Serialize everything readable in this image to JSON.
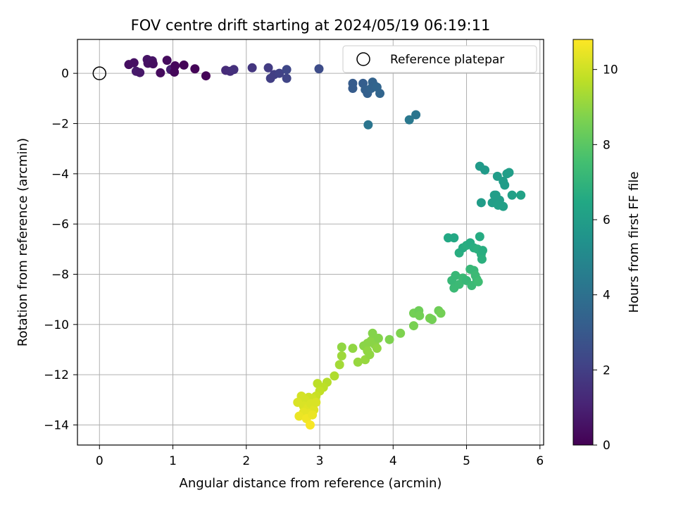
{
  "chart_data": {
    "type": "scatter",
    "title": "FOV centre drift starting at 2024/05/19 06:19:11",
    "xlabel": "Angular distance from reference (arcmin)",
    "ylabel": "Rotation from reference (arcmin)",
    "xlim": [
      -0.3,
      6.05
    ],
    "ylim": [
      -14.8,
      1.35
    ],
    "xticks": [
      0,
      1,
      2,
      3,
      4,
      5,
      6
    ],
    "yticks": [
      0,
      -2,
      -4,
      -6,
      -8,
      -10,
      -12,
      -14
    ],
    "grid": true,
    "legend": {
      "position": "top-right",
      "entries": [
        "Reference platepar"
      ]
    },
    "reference_point": {
      "x": 0,
      "y": 0
    },
    "colorbar": {
      "label": "Hours from first FF file",
      "colormap": "viridis",
      "range": [
        0,
        10.8
      ],
      "ticks": [
        0,
        2,
        4,
        6,
        8,
        10
      ]
    },
    "points": [
      {
        "x": 0.4,
        "y": 0.35,
        "c": 0.4
      },
      {
        "x": 0.47,
        "y": 0.42,
        "c": 0.5
      },
      {
        "x": 0.5,
        "y": 0.08,
        "c": 0.8
      },
      {
        "x": 0.55,
        "y": 0.03,
        "c": 0.7
      },
      {
        "x": 0.65,
        "y": 0.55,
        "c": 0.6
      },
      {
        "x": 0.66,
        "y": 0.4,
        "c": 0.5
      },
      {
        "x": 0.72,
        "y": 0.5,
        "c": 0.6
      },
      {
        "x": 0.73,
        "y": 0.38,
        "c": 0.4
      },
      {
        "x": 0.83,
        "y": 0.02,
        "c": 0.3
      },
      {
        "x": 0.92,
        "y": 0.52,
        "c": 0.3
      },
      {
        "x": 0.97,
        "y": 0.15,
        "c": 0.9
      },
      {
        "x": 1.02,
        "y": 0.05,
        "c": 0.2
      },
      {
        "x": 1.03,
        "y": 0.3,
        "c": 0.2
      },
      {
        "x": 1.15,
        "y": 0.33,
        "c": 0.1
      },
      {
        "x": 1.3,
        "y": 0.18,
        "c": 0.1
      },
      {
        "x": 1.45,
        "y": -0.1,
        "c": 0.1
      },
      {
        "x": 1.72,
        "y": 0.12,
        "c": 1.3
      },
      {
        "x": 1.78,
        "y": 0.08,
        "c": 1.4
      },
      {
        "x": 1.83,
        "y": 0.15,
        "c": 1.5
      },
      {
        "x": 2.08,
        "y": 0.22,
        "c": 1.7
      },
      {
        "x": 2.3,
        "y": 0.22,
        "c": 1.9
      },
      {
        "x": 2.33,
        "y": -0.2,
        "c": 2.0
      },
      {
        "x": 2.38,
        "y": -0.05,
        "c": 2.0
      },
      {
        "x": 2.45,
        "y": 0.0,
        "c": 2.1
      },
      {
        "x": 2.55,
        "y": -0.2,
        "c": 2.2
      },
      {
        "x": 2.55,
        "y": 0.15,
        "c": 2.3
      },
      {
        "x": 2.99,
        "y": 0.18,
        "c": 2.5
      },
      {
        "x": 3.45,
        "y": -0.4,
        "c": 3.1
      },
      {
        "x": 3.45,
        "y": -0.6,
        "c": 3.1
      },
      {
        "x": 3.59,
        "y": -0.4,
        "c": 3.2
      },
      {
        "x": 3.62,
        "y": -0.65,
        "c": 3.3
      },
      {
        "x": 3.65,
        "y": -0.8,
        "c": 3.3
      },
      {
        "x": 3.7,
        "y": -0.6,
        "c": 3.4
      },
      {
        "x": 3.72,
        "y": -0.35,
        "c": 3.4
      },
      {
        "x": 3.75,
        "y": -0.5,
        "c": 3.4
      },
      {
        "x": 3.78,
        "y": -0.55,
        "c": 3.5
      },
      {
        "x": 3.82,
        "y": -0.8,
        "c": 3.5
      },
      {
        "x": 3.66,
        "y": -2.05,
        "c": 4.2
      },
      {
        "x": 4.22,
        "y": -1.85,
        "c": 4.3
      },
      {
        "x": 4.31,
        "y": -1.65,
        "c": 4.2
      },
      {
        "x": 5.18,
        "y": -3.7,
        "c": 5.8
      },
      {
        "x": 5.25,
        "y": -3.85,
        "c": 5.8
      },
      {
        "x": 5.2,
        "y": -5.15,
        "c": 5.9
      },
      {
        "x": 5.35,
        "y": -5.15,
        "c": 6.0
      },
      {
        "x": 5.4,
        "y": -4.85,
        "c": 6.0
      },
      {
        "x": 5.42,
        "y": -4.1,
        "c": 5.9
      },
      {
        "x": 5.45,
        "y": -5.05,
        "c": 6.0
      },
      {
        "x": 5.5,
        "y": -4.3,
        "c": 5.9
      },
      {
        "x": 5.5,
        "y": -5.3,
        "c": 6.1
      },
      {
        "x": 5.52,
        "y": -4.45,
        "c": 5.9
      },
      {
        "x": 5.55,
        "y": -4.0,
        "c": 6.0
      },
      {
        "x": 5.58,
        "y": -3.95,
        "c": 6.0
      },
      {
        "x": 5.43,
        "y": -5.25,
        "c": 6.1
      },
      {
        "x": 5.38,
        "y": -4.85,
        "c": 6.0
      },
      {
        "x": 5.62,
        "y": -4.85,
        "c": 6.1
      },
      {
        "x": 5.74,
        "y": -4.85,
        "c": 6.2
      },
      {
        "x": 4.75,
        "y": -6.55,
        "c": 6.5
      },
      {
        "x": 4.83,
        "y": -6.55,
        "c": 6.5
      },
      {
        "x": 4.9,
        "y": -7.15,
        "c": 6.7
      },
      {
        "x": 4.95,
        "y": -6.95,
        "c": 6.6
      },
      {
        "x": 5.0,
        "y": -6.85,
        "c": 6.7
      },
      {
        "x": 5.05,
        "y": -6.75,
        "c": 6.6
      },
      {
        "x": 5.1,
        "y": -6.95,
        "c": 6.7
      },
      {
        "x": 5.15,
        "y": -7.0,
        "c": 6.8
      },
      {
        "x": 5.18,
        "y": -6.5,
        "c": 6.6
      },
      {
        "x": 5.2,
        "y": -7.2,
        "c": 6.8
      },
      {
        "x": 5.21,
        "y": -7.4,
        "c": 6.8
      },
      {
        "x": 5.22,
        "y": -7.05,
        "c": 6.7
      },
      {
        "x": 4.8,
        "y": -8.25,
        "c": 7.2
      },
      {
        "x": 4.83,
        "y": -8.55,
        "c": 7.3
      },
      {
        "x": 4.85,
        "y": -8.05,
        "c": 7.2
      },
      {
        "x": 4.9,
        "y": -8.4,
        "c": 7.3
      },
      {
        "x": 4.95,
        "y": -8.15,
        "c": 7.3
      },
      {
        "x": 5.0,
        "y": -8.25,
        "c": 7.2
      },
      {
        "x": 5.05,
        "y": -7.8,
        "c": 7.2
      },
      {
        "x": 5.07,
        "y": -8.45,
        "c": 7.3
      },
      {
        "x": 5.1,
        "y": -7.85,
        "c": 7.2
      },
      {
        "x": 5.12,
        "y": -8.05,
        "c": 7.3
      },
      {
        "x": 5.14,
        "y": -8.2,
        "c": 7.3
      },
      {
        "x": 5.16,
        "y": -8.3,
        "c": 7.4
      },
      {
        "x": 4.28,
        "y": -9.55,
        "c": 8.5
      },
      {
        "x": 4.35,
        "y": -9.45,
        "c": 8.4
      },
      {
        "x": 4.36,
        "y": -9.65,
        "c": 8.5
      },
      {
        "x": 4.5,
        "y": -9.75,
        "c": 8.6
      },
      {
        "x": 4.53,
        "y": -9.8,
        "c": 8.5
      },
      {
        "x": 4.62,
        "y": -9.45,
        "c": 8.4
      },
      {
        "x": 4.65,
        "y": -9.55,
        "c": 8.5
      },
      {
        "x": 4.28,
        "y": -10.05,
        "c": 8.6
      },
      {
        "x": 4.1,
        "y": -10.35,
        "c": 8.7
      },
      {
        "x": 3.95,
        "y": -10.6,
        "c": 8.7
      },
      {
        "x": 3.3,
        "y": -10.9,
        "c": 9.0
      },
      {
        "x": 3.45,
        "y": -10.95,
        "c": 9.0
      },
      {
        "x": 3.52,
        "y": -11.5,
        "c": 9.1
      },
      {
        "x": 3.6,
        "y": -10.85,
        "c": 8.9
      },
      {
        "x": 3.62,
        "y": -11.4,
        "c": 9.1
      },
      {
        "x": 3.65,
        "y": -10.75,
        "c": 8.9
      },
      {
        "x": 3.68,
        "y": -11.2,
        "c": 9.0
      },
      {
        "x": 3.7,
        "y": -10.65,
        "c": 8.9
      },
      {
        "x": 3.72,
        "y": -10.35,
        "c": 8.8
      },
      {
        "x": 3.75,
        "y": -10.8,
        "c": 8.9
      },
      {
        "x": 3.78,
        "y": -10.95,
        "c": 9.0
      },
      {
        "x": 3.8,
        "y": -10.55,
        "c": 8.8
      },
      {
        "x": 3.65,
        "y": -11.05,
        "c": 9.0
      },
      {
        "x": 3.3,
        "y": -11.25,
        "c": 9.2
      },
      {
        "x": 3.27,
        "y": -11.6,
        "c": 9.3
      },
      {
        "x": 3.2,
        "y": -12.05,
        "c": 9.5
      },
      {
        "x": 3.1,
        "y": -12.3,
        "c": 9.6
      },
      {
        "x": 3.05,
        "y": -12.5,
        "c": 9.7
      },
      {
        "x": 2.97,
        "y": -12.35,
        "c": 9.7
      },
      {
        "x": 3.0,
        "y": -12.65,
        "c": 9.8
      },
      {
        "x": 2.95,
        "y": -12.85,
        "c": 9.9
      },
      {
        "x": 2.9,
        "y": -12.95,
        "c": 10.0
      },
      {
        "x": 2.85,
        "y": -12.9,
        "c": 10.0
      },
      {
        "x": 2.8,
        "y": -13.0,
        "c": 10.1
      },
      {
        "x": 2.75,
        "y": -12.85,
        "c": 10.1
      },
      {
        "x": 2.7,
        "y": -13.1,
        "c": 10.2
      },
      {
        "x": 2.78,
        "y": -13.25,
        "c": 10.2
      },
      {
        "x": 2.83,
        "y": -13.35,
        "c": 10.3
      },
      {
        "x": 2.88,
        "y": -13.15,
        "c": 10.2
      },
      {
        "x": 2.92,
        "y": -13.4,
        "c": 10.3
      },
      {
        "x": 2.95,
        "y": -13.1,
        "c": 10.2
      },
      {
        "x": 2.85,
        "y": -13.55,
        "c": 10.4
      },
      {
        "x": 2.78,
        "y": -13.5,
        "c": 10.4
      },
      {
        "x": 2.72,
        "y": -13.65,
        "c": 10.5
      },
      {
        "x": 2.82,
        "y": -13.75,
        "c": 10.6
      },
      {
        "x": 2.9,
        "y": -13.6,
        "c": 10.5
      },
      {
        "x": 2.87,
        "y": -14.0,
        "c": 10.7
      }
    ]
  }
}
